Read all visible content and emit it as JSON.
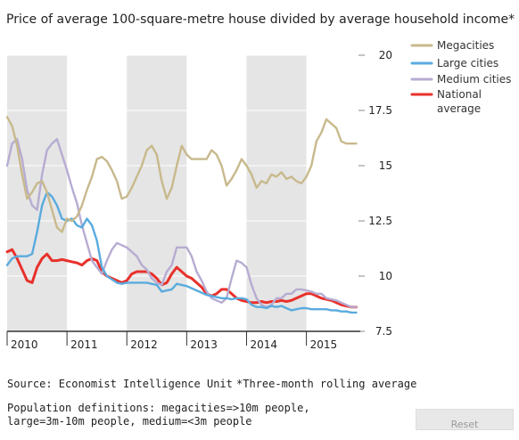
{
  "chart_data": {
    "type": "line",
    "title": "Price of average 100-square-metre house divided by average household income*",
    "x_labels": [
      "2010",
      "2011",
      "2012",
      "2013",
      "2014",
      "2015"
    ],
    "x_start": "2010-01",
    "x_end": "2015-11",
    "x_interval": "month",
    "ylim": [
      7.5,
      20
    ],
    "y_ticks": [
      7.5,
      10,
      12.5,
      15,
      17.5,
      20
    ],
    "y_tick_labels": [
      "7.5",
      "10",
      "12.5",
      "15",
      "17.5",
      "20"
    ],
    "y_axis_position": "right",
    "shaded_year_bands": [
      "2010",
      "2012",
      "2014"
    ],
    "legend_position": "top-right",
    "series": [
      {
        "name": "Megacities",
        "color": "#c8b98c",
        "values": [
          17.2,
          16.8,
          15.9,
          14.6,
          13.5,
          13.8,
          14.2,
          14.3,
          13.8,
          13.0,
          12.2,
          12.0,
          12.6,
          12.5,
          12.7,
          13.2,
          13.9,
          14.5,
          15.3,
          15.4,
          15.2,
          14.8,
          14.3,
          13.5,
          13.6,
          14.0,
          14.5,
          15.0,
          15.7,
          15.9,
          15.5,
          14.3,
          13.5,
          14.0,
          15.0,
          15.9,
          15.5,
          15.3,
          15.3,
          15.3,
          15.3,
          15.7,
          15.5,
          15.0,
          14.1,
          14.4,
          14.8,
          15.3,
          15.0,
          14.6,
          14.0,
          14.3,
          14.2,
          14.6,
          14.5,
          14.7,
          14.4,
          14.5,
          14.3,
          14.2,
          14.5,
          15.0,
          16.1,
          16.5,
          17.1,
          16.9,
          16.7,
          16.1,
          16.0,
          16.0,
          16.0
        ]
      },
      {
        "name": "Large cities",
        "color": "#5aabde",
        "values": [
          10.5,
          10.8,
          10.9,
          10.9,
          10.9,
          11.0,
          12.0,
          13.2,
          13.8,
          13.6,
          13.2,
          12.6,
          12.5,
          12.6,
          12.3,
          12.2,
          12.6,
          12.3,
          11.6,
          10.4,
          10.0,
          9.85,
          9.7,
          9.65,
          9.7,
          9.7,
          9.7,
          9.7,
          9.7,
          9.65,
          9.6,
          9.3,
          9.35,
          9.4,
          9.65,
          9.6,
          9.55,
          9.45,
          9.35,
          9.25,
          9.15,
          9.1,
          9.05,
          9.0,
          9.0,
          8.95,
          9.0,
          9.0,
          8.95,
          8.7,
          8.6,
          8.6,
          8.55,
          8.65,
          8.6,
          8.65,
          8.55,
          8.45,
          8.5,
          8.55,
          8.55,
          8.5,
          8.5,
          8.5,
          8.5,
          8.45,
          8.45,
          8.4,
          8.4,
          8.35,
          8.35
        ]
      },
      {
        "name": "Medium cities",
        "color": "#b7acd2",
        "values": [
          15.0,
          16.0,
          16.2,
          15.3,
          13.9,
          13.2,
          13.0,
          14.6,
          15.7,
          16.0,
          16.2,
          15.5,
          14.8,
          14.0,
          13.3,
          12.3,
          11.5,
          10.7,
          10.4,
          10.1,
          10.7,
          11.2,
          11.5,
          11.4,
          11.3,
          11.1,
          10.9,
          10.5,
          10.3,
          9.9,
          9.7,
          9.6,
          10.2,
          10.5,
          11.3,
          11.3,
          11.3,
          10.9,
          10.2,
          9.8,
          9.3,
          9.0,
          8.9,
          8.8,
          9.0,
          9.9,
          10.7,
          10.6,
          10.4,
          9.6,
          9.0,
          8.7,
          8.6,
          8.7,
          9.0,
          9.0,
          9.2,
          9.2,
          9.4,
          9.4,
          9.35,
          9.3,
          9.2,
          9.2,
          9.0,
          8.95,
          8.9,
          8.8,
          8.7,
          8.6,
          8.6
        ]
      },
      {
        "name": "National average",
        "legend_lines": [
          "National",
          "average"
        ],
        "color": "#e8312b",
        "values": [
          11.1,
          11.2,
          10.8,
          10.3,
          9.8,
          9.7,
          10.4,
          10.8,
          11.0,
          10.7,
          10.7,
          10.75,
          10.7,
          10.65,
          10.6,
          10.5,
          10.7,
          10.8,
          10.7,
          10.2,
          10.0,
          9.9,
          9.8,
          9.7,
          9.8,
          10.1,
          10.2,
          10.2,
          10.2,
          10.1,
          9.9,
          9.6,
          9.7,
          10.1,
          10.4,
          10.2,
          10.0,
          9.9,
          9.7,
          9.5,
          9.2,
          9.1,
          9.2,
          9.4,
          9.4,
          9.2,
          9.0,
          8.9,
          8.85,
          8.8,
          8.8,
          8.85,
          8.8,
          8.85,
          8.85,
          8.9,
          8.85,
          8.9,
          9.0,
          9.1,
          9.2,
          9.2,
          9.1,
          9.0,
          8.95,
          8.9,
          8.8,
          8.7,
          8.65,
          8.6,
          8.6
        ]
      }
    ]
  },
  "source_note": "Source: Economist Intelligence Unit",
  "footnote": "*Three-month rolling average",
  "definitions_note": "Population definitions: megacities=>10m people,\nlarge=3m-10m people, medium=<3m people",
  "reset_button": {
    "label": "Reset"
  }
}
